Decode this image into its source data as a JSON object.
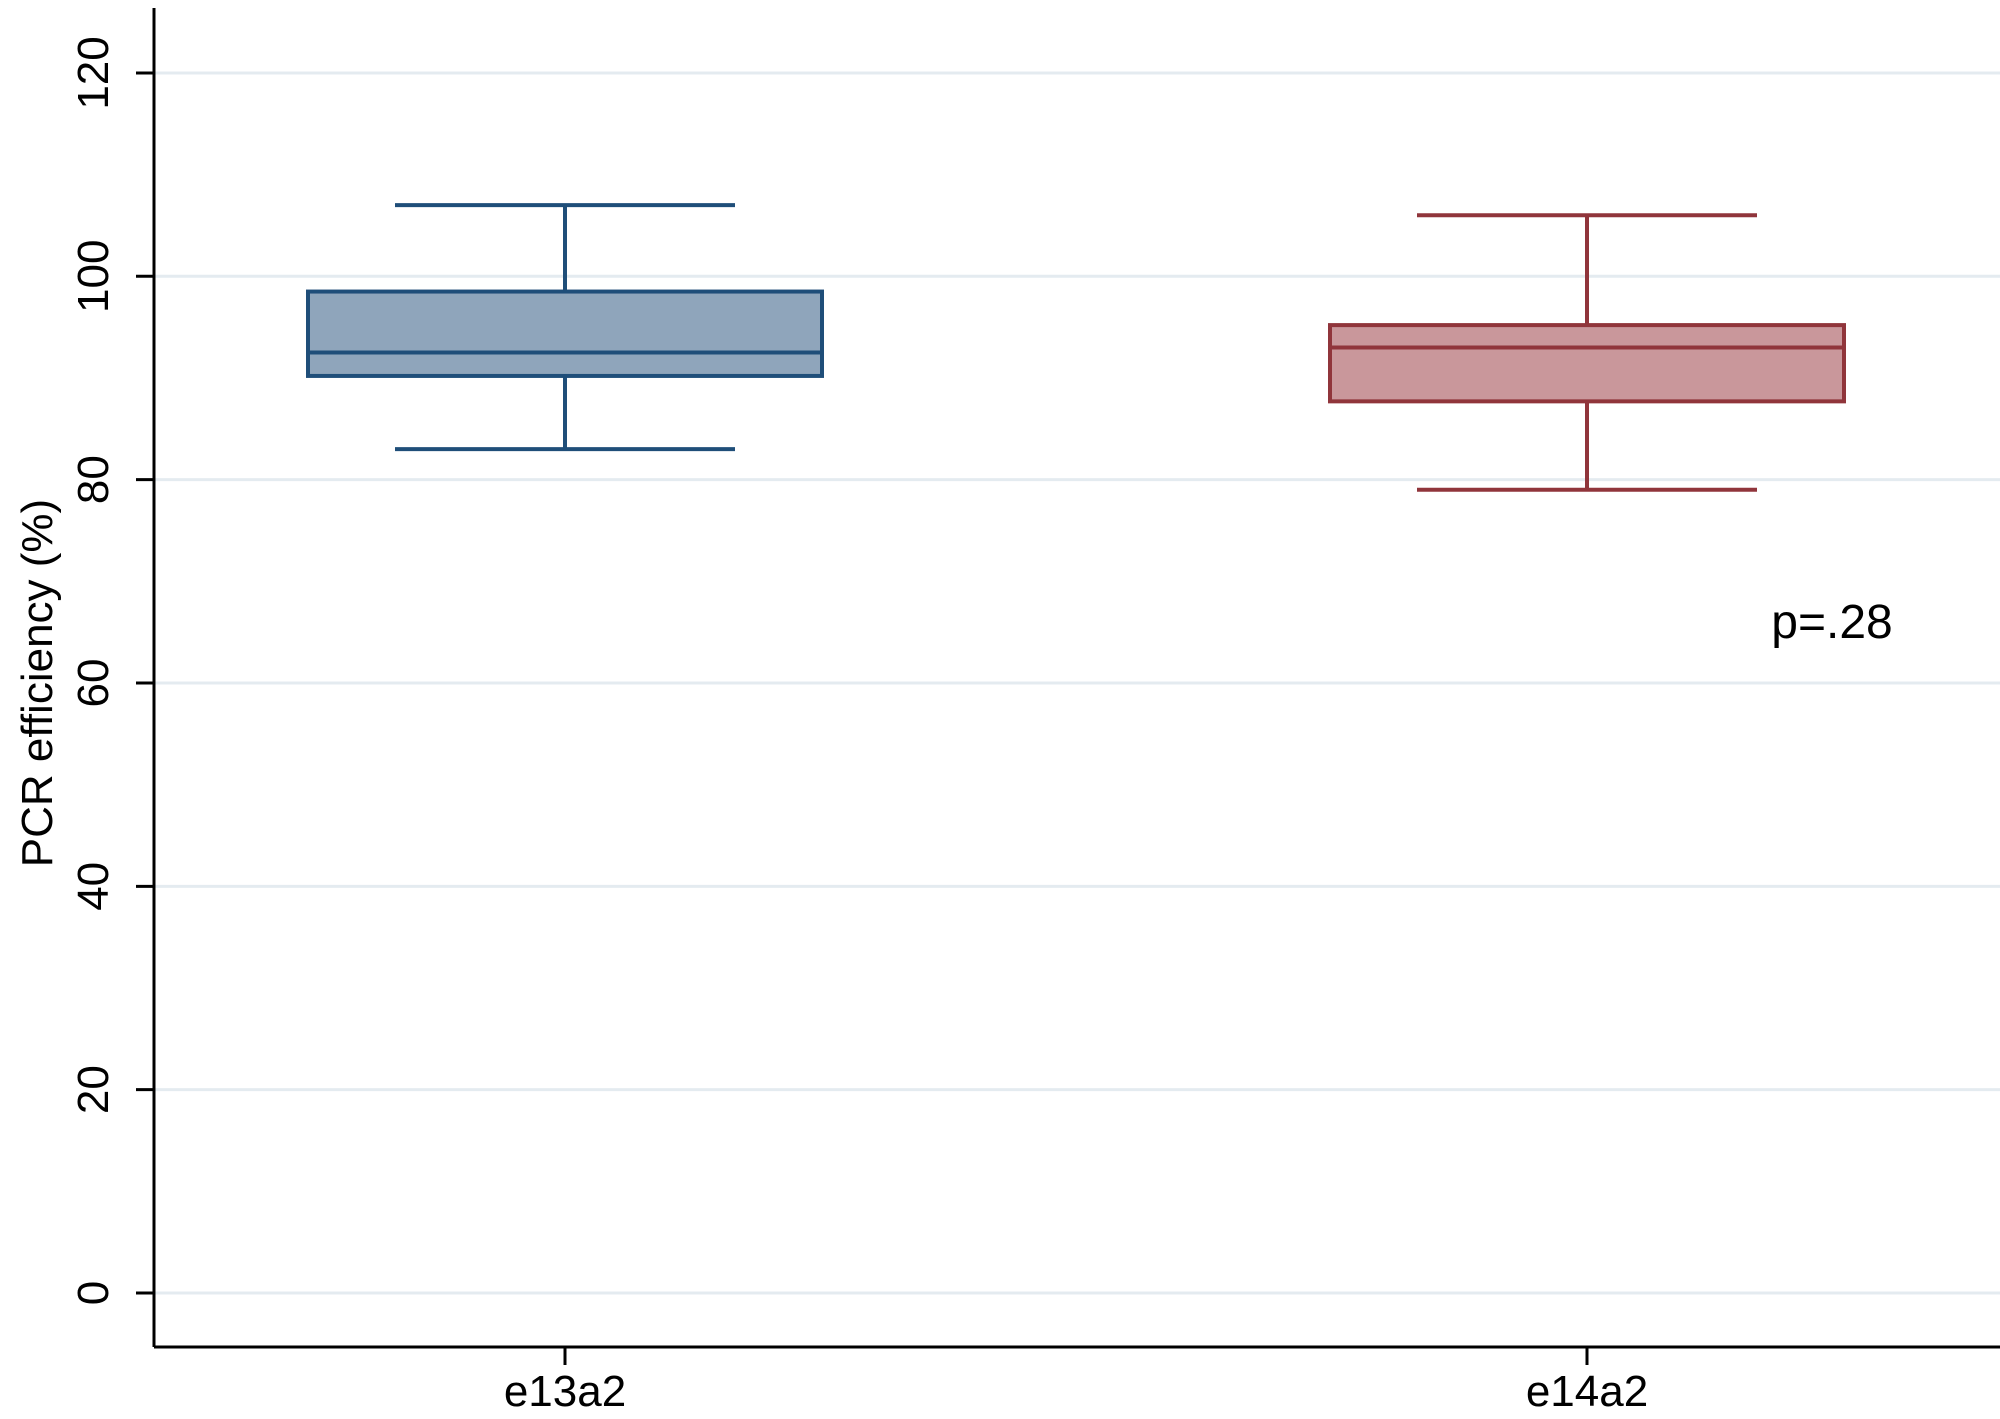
{
  "chart_data": {
    "type": "box",
    "title": "",
    "xlabel": "",
    "ylabel": "PCR efficiency (%)",
    "ylim": [
      0,
      125
    ],
    "yticks": [
      0,
      20,
      40,
      60,
      80,
      100,
      120
    ],
    "grid": true,
    "categories": [
      "e13a2",
      "e14a2"
    ],
    "series": [
      {
        "category": "e13a2",
        "whisker_low": 83,
        "q1": 90.2,
        "median": 92.5,
        "q3": 98.5,
        "whisker_high": 107,
        "fill": "#8fa5bb",
        "stroke": "#1f4e79"
      },
      {
        "category": "e14a2",
        "whisker_low": 79,
        "q1": 87.7,
        "median": 93,
        "q3": 95.2,
        "whisker_high": 106,
        "fill": "#c9979b",
        "stroke": "#90353b"
      }
    ],
    "annotations": [
      {
        "text": "p=.28",
        "x_category": "e14a2",
        "y": 66
      }
    ],
    "colors": {
      "grid": "#e4ebf0",
      "axis": "#000000"
    }
  }
}
